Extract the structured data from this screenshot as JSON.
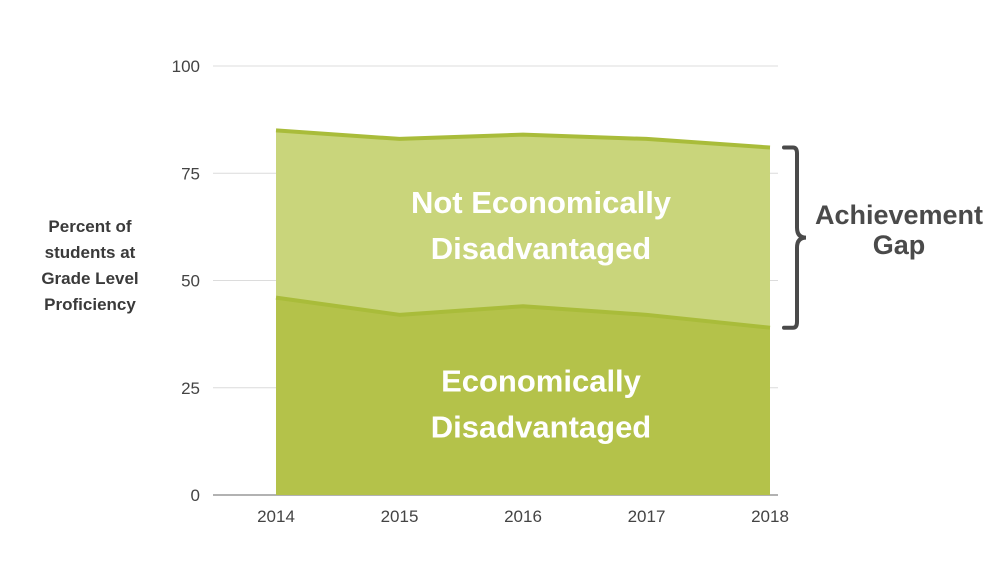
{
  "chart_data": {
    "type": "area",
    "x": [
      "2014",
      "2015",
      "2016",
      "2017",
      "2018"
    ],
    "ylabel_lines": [
      "Percent of",
      "students at",
      "Grade Level",
      "Proficiency"
    ],
    "ylim": [
      0,
      100
    ],
    "yticks": [
      "0",
      "25",
      "50",
      "75",
      "100"
    ],
    "grid": true,
    "series": [
      {
        "name_lines": [
          "Not Economically",
          "Disadvantaged"
        ],
        "values": [
          85,
          83,
          84,
          83,
          81
        ],
        "color": "#c9d57b",
        "line_color": "#a9bc3a"
      },
      {
        "name_lines": [
          "Economically",
          "Disadvantaged"
        ],
        "values": [
          46,
          42,
          44,
          42,
          39
        ],
        "color": "#b4c24a",
        "line_color": "#a9bc3a"
      }
    ],
    "annotation": {
      "lines": [
        "Achievement",
        "Gap"
      ],
      "color": "#4a4a4a"
    }
  }
}
